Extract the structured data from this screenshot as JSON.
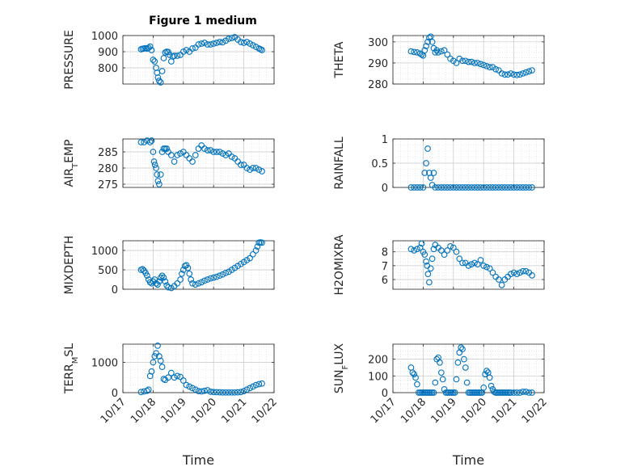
{
  "figure": {
    "title": "Figure 1 medium",
    "x_tick_labels": [
      "10/17",
      "10/18",
      "10/19",
      "10/20",
      "10/21",
      "10/22"
    ]
  },
  "colors": {
    "marker": "#0072BD",
    "grid": "#d9d9d9",
    "axis": "#262626"
  },
  "chart_data": [
    {
      "type": "scatter",
      "title": "Figure 1 medium",
      "xlabel": "",
      "ylabel": "PRESSURE",
      "ylim": [
        700,
        1000
      ],
      "yticks": [
        800,
        900,
        1000
      ],
      "x": [
        17.6,
        17.65,
        17.7,
        17.75,
        17.8,
        17.85,
        17.9,
        17.95,
        18.0,
        18.05,
        18.1,
        18.13,
        18.16,
        18.2,
        18.25,
        18.3,
        18.35,
        18.4,
        18.45,
        18.5,
        18.55,
        18.6,
        18.65,
        18.7,
        18.8,
        18.9,
        19.0,
        19.1,
        19.2,
        19.3,
        19.4,
        19.5,
        19.6,
        19.7,
        19.8,
        19.9,
        20.0,
        20.1,
        20.2,
        20.3,
        20.4,
        20.5,
        20.6,
        20.7,
        20.8,
        20.9,
        21.0,
        21.1,
        21.2,
        21.3,
        21.4,
        21.5,
        21.55,
        21.6
      ],
      "y": [
        915,
        918,
        920,
        922,
        919,
        924,
        932,
        910,
        850,
        840,
        800,
        770,
        740,
        720,
        710,
        780,
        860,
        895,
        900,
        898,
        880,
        840,
        870,
        875,
        875,
        880,
        900,
        910,
        900,
        920,
        925,
        945,
        950,
        955,
        945,
        945,
        950,
        955,
        960,
        958,
        968,
        980,
        985,
        990,
        975,
        960,
        955,
        960,
        950,
        940,
        930,
        920,
        915,
        910
      ]
    },
    {
      "type": "scatter",
      "xlabel": "",
      "ylabel": "THETA",
      "ylim": [
        280,
        303
      ],
      "yticks": [
        280,
        290,
        300
      ],
      "x": [
        17.6,
        17.7,
        17.8,
        17.9,
        17.95,
        18.0,
        18.05,
        18.1,
        18.15,
        18.2,
        18.25,
        18.3,
        18.35,
        18.4,
        18.45,
        18.5,
        18.6,
        18.7,
        18.8,
        18.9,
        19.0,
        19.1,
        19.2,
        19.3,
        19.4,
        19.5,
        19.6,
        19.7,
        19.8,
        19.9,
        20.0,
        20.1,
        20.2,
        20.3,
        20.4,
        20.5,
        20.6,
        20.7,
        20.8,
        20.9,
        21.0,
        21.1,
        21.2,
        21.3,
        21.4,
        21.5,
        21.6
      ],
      "y": [
        295.5,
        295.2,
        295,
        294.5,
        294,
        293.5,
        296,
        298,
        300,
        302,
        302.5,
        300,
        297,
        295,
        296,
        295,
        295.5,
        296,
        294,
        292,
        291,
        290,
        292,
        291,
        291,
        290.5,
        290.5,
        290,
        290,
        289.5,
        289,
        288.5,
        288,
        288,
        287,
        286.5,
        285,
        284.5,
        284.5,
        285,
        284.5,
        284.3,
        284.5,
        285,
        285.5,
        286,
        286.5
      ]
    },
    {
      "type": "scatter",
      "xlabel": "",
      "ylabel": "AIR_TEMP",
      "ylim": [
        274,
        289
      ],
      "yticks": [
        275,
        280,
        285
      ],
      "x": [
        17.6,
        17.7,
        17.8,
        17.9,
        17.95,
        18.0,
        18.03,
        18.06,
        18.1,
        18.13,
        18.16,
        18.2,
        18.25,
        18.3,
        18.35,
        18.4,
        18.45,
        18.5,
        18.6,
        18.7,
        18.8,
        18.9,
        19.0,
        19.1,
        19.2,
        19.3,
        19.4,
        19.5,
        19.6,
        19.7,
        19.8,
        19.9,
        20.0,
        20.1,
        20.2,
        20.3,
        20.4,
        20.5,
        20.6,
        20.7,
        20.8,
        20.9,
        21.0,
        21.1,
        21.2,
        21.3,
        21.4,
        21.5,
        21.6
      ],
      "y": [
        288,
        288,
        288.5,
        288,
        288.5,
        285,
        282,
        281,
        280,
        278,
        276,
        275,
        278,
        285,
        286,
        286,
        286,
        285,
        284,
        282,
        284,
        284.5,
        285,
        284,
        283,
        282,
        284,
        286,
        287,
        286,
        285.5,
        285.5,
        285,
        285,
        285,
        284.5,
        284,
        284.5,
        283.5,
        283,
        282,
        281,
        281,
        280,
        279.5,
        280,
        280,
        279.5,
        279
      ]
    },
    {
      "type": "scatter",
      "xlabel": "",
      "ylabel": "RAINFALL",
      "ylim": [
        0,
        1
      ],
      "yticks": [
        0,
        0.5,
        1
      ],
      "x": [
        17.6,
        17.7,
        17.8,
        17.9,
        18.0,
        18.05,
        18.1,
        18.15,
        18.2,
        18.25,
        18.3,
        18.35,
        18.4,
        18.5,
        18.6,
        18.7,
        18.8,
        18.9,
        19.0,
        19.1,
        19.2,
        19.3,
        19.4,
        19.5,
        19.6,
        19.7,
        19.8,
        19.9,
        20.0,
        20.1,
        20.2,
        20.3,
        20.4,
        20.5,
        20.6,
        20.7,
        20.8,
        20.9,
        21.0,
        21.1,
        21.2,
        21.3,
        21.4,
        21.5,
        21.6
      ],
      "y": [
        0,
        0,
        0,
        0,
        0,
        0.3,
        0.5,
        0.8,
        0.3,
        0.2,
        0.05,
        0.3,
        0,
        0,
        0,
        0,
        0,
        0,
        0,
        0,
        0,
        0,
        0,
        0,
        0,
        0,
        0,
        0,
        0,
        0,
        0,
        0,
        0,
        0,
        0,
        0,
        0,
        0,
        0,
        0,
        0,
        0,
        0,
        0,
        0
      ]
    },
    {
      "type": "scatter",
      "xlabel": "",
      "ylabel": "MIXDEPTH",
      "ylim": [
        0,
        1250
      ],
      "yticks": [
        0,
        500,
        1000
      ],
      "x": [
        17.6,
        17.65,
        17.7,
        17.75,
        17.8,
        17.85,
        17.9,
        17.95,
        18.0,
        18.05,
        18.1,
        18.15,
        18.2,
        18.25,
        18.3,
        18.35,
        18.4,
        18.45,
        18.5,
        18.6,
        18.7,
        18.8,
        18.9,
        18.95,
        19.0,
        19.05,
        19.1,
        19.15,
        19.2,
        19.25,
        19.3,
        19.4,
        19.5,
        19.6,
        19.7,
        19.8,
        19.9,
        20.0,
        20.1,
        20.2,
        20.3,
        20.4,
        20.5,
        20.6,
        20.7,
        20.8,
        20.9,
        21.0,
        21.1,
        21.2,
        21.3,
        21.4,
        21.45,
        21.5,
        21.55,
        21.6
      ],
      "y": [
        500,
        520,
        480,
        420,
        350,
        250,
        180,
        150,
        200,
        250,
        150,
        120,
        200,
        300,
        350,
        300,
        200,
        100,
        50,
        30,
        80,
        150,
        250,
        400,
        500,
        600,
        620,
        550,
        400,
        250,
        150,
        120,
        150,
        180,
        220,
        250,
        280,
        300,
        320,
        350,
        380,
        420,
        450,
        500,
        550,
        600,
        650,
        700,
        750,
        800,
        900,
        1000,
        1100,
        1200,
        1210,
        1200
      ]
    },
    {
      "type": "scatter",
      "xlabel": "",
      "ylabel": "H2OMIXRA",
      "ylim": [
        5.3,
        8.8
      ],
      "yticks": [
        6,
        7,
        8
      ],
      "x": [
        17.6,
        17.7,
        17.8,
        17.9,
        17.95,
        18.0,
        18.05,
        18.1,
        18.13,
        18.16,
        18.2,
        18.25,
        18.3,
        18.35,
        18.4,
        18.5,
        18.6,
        18.7,
        18.8,
        18.9,
        19.0,
        19.1,
        19.2,
        19.3,
        19.4,
        19.5,
        19.6,
        19.7,
        19.8,
        19.9,
        20.0,
        20.1,
        20.2,
        20.3,
        20.4,
        20.5,
        20.6,
        20.7,
        20.8,
        20.9,
        21.0,
        21.1,
        21.2,
        21.3,
        21.4,
        21.5,
        21.6
      ],
      "y": [
        8.2,
        8.1,
        8.2,
        8.3,
        8.6,
        8.0,
        7.8,
        7.3,
        7.0,
        6.4,
        5.8,
        6.8,
        7.5,
        8.2,
        8.5,
        8.3,
        8.1,
        7.8,
        8.1,
        8.4,
        8.3,
        8.0,
        7.5,
        7.2,
        7.2,
        7.0,
        7.1,
        7.2,
        7.1,
        7.4,
        7.0,
        6.9,
        6.8,
        6.5,
        6.2,
        6.0,
        5.6,
        6.0,
        6.2,
        6.4,
        6.5,
        6.4,
        6.5,
        6.6,
        6.6,
        6.5,
        6.3
      ]
    },
    {
      "type": "scatter",
      "xlabel": "Time",
      "ylabel": "TERR_MSL",
      "ylim": [
        0,
        1600
      ],
      "yticks": [
        0,
        1000
      ],
      "x": [
        17.6,
        17.7,
        17.8,
        17.85,
        17.9,
        17.95,
        18.0,
        18.05,
        18.1,
        18.15,
        18.2,
        18.25,
        18.3,
        18.35,
        18.4,
        18.5,
        18.6,
        18.7,
        18.8,
        18.9,
        19.0,
        19.1,
        19.2,
        19.3,
        19.4,
        19.5,
        19.6,
        19.7,
        19.8,
        19.9,
        20.0,
        20.1,
        20.2,
        20.3,
        20.4,
        20.5,
        20.6,
        20.7,
        20.8,
        20.9,
        21.0,
        21.1,
        21.2,
        21.3,
        21.4,
        21.5,
        21.6
      ],
      "y": [
        20,
        40,
        60,
        100,
        550,
        700,
        1000,
        1200,
        1300,
        1550,
        1200,
        1050,
        850,
        450,
        420,
        500,
        650,
        500,
        550,
        520,
        400,
        250,
        200,
        150,
        100,
        50,
        40,
        60,
        80,
        30,
        20,
        15,
        10,
        5,
        5,
        5,
        5,
        5,
        10,
        20,
        50,
        100,
        150,
        200,
        250,
        280,
        300
      ]
    },
    {
      "type": "scatter",
      "xlabel": "Time",
      "ylabel": "SUN_FLUX",
      "ylim": [
        0,
        290
      ],
      "yticks": [
        0,
        100,
        200
      ],
      "x": [
        17.6,
        17.65,
        17.7,
        17.75,
        17.8,
        17.85,
        17.9,
        17.95,
        18.0,
        18.05,
        18.1,
        18.15,
        18.2,
        18.25,
        18.3,
        18.35,
        18.4,
        18.45,
        18.5,
        18.55,
        18.6,
        18.65,
        18.7,
        18.75,
        18.8,
        18.85,
        18.9,
        18.95,
        19.0,
        19.05,
        19.1,
        19.15,
        19.2,
        19.25,
        19.3,
        19.35,
        19.4,
        19.45,
        19.5,
        19.55,
        19.6,
        19.65,
        19.7,
        19.75,
        19.8,
        19.85,
        19.9,
        19.95,
        20.0,
        20.05,
        20.1,
        20.15,
        20.2,
        20.25,
        20.3,
        20.35,
        20.4,
        20.45,
        20.5,
        20.55,
        20.6,
        20.65,
        20.7,
        20.75,
        20.8,
        20.85,
        20.9,
        21.0,
        21.1,
        21.2,
        21.3,
        21.4,
        21.5,
        21.6
      ],
      "y": [
        150,
        120,
        110,
        90,
        50,
        0,
        0,
        0,
        0,
        0,
        0,
        0,
        0,
        0,
        0,
        0,
        60,
        200,
        210,
        180,
        120,
        80,
        20,
        0,
        0,
        0,
        0,
        0,
        0,
        0,
        80,
        180,
        240,
        270,
        260,
        200,
        150,
        60,
        0,
        0,
        0,
        0,
        0,
        0,
        0,
        0,
        0,
        0,
        30,
        110,
        130,
        120,
        90,
        40,
        20,
        5,
        0,
        0,
        0,
        0,
        0,
        0,
        0,
        0,
        0,
        0,
        0,
        0,
        0,
        0,
        5,
        5,
        0,
        0
      ]
    }
  ]
}
